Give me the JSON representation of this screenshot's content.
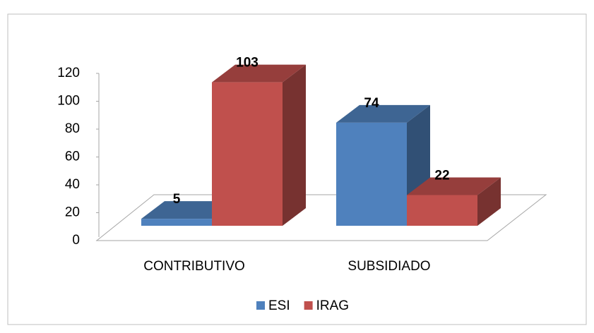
{
  "chart_data": {
    "type": "bar3d",
    "categories": [
      "CONTRIBUTIVO",
      "SUBSIDIADO"
    ],
    "series": [
      {
        "name": "ESI",
        "color": "#4f81bd",
        "values": [
          5,
          74
        ]
      },
      {
        "name": "IRAG",
        "color": "#c0504d",
        "values": [
          103,
          22
        ]
      }
    ],
    "ylim": [
      0,
      120
    ],
    "yticks": [
      0,
      20,
      40,
      60,
      80,
      100,
      120
    ],
    "data_labels": true,
    "legend": "bottom"
  }
}
